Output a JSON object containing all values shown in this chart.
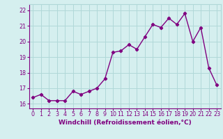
{
  "x": [
    0,
    1,
    2,
    3,
    4,
    5,
    6,
    7,
    8,
    9,
    10,
    11,
    12,
    13,
    14,
    15,
    16,
    17,
    18,
    19,
    20,
    21,
    22,
    23
  ],
  "y": [
    16.4,
    16.6,
    16.2,
    16.2,
    16.2,
    16.8,
    16.6,
    16.8,
    17.0,
    17.6,
    19.3,
    19.4,
    19.8,
    19.5,
    20.3,
    21.1,
    20.9,
    21.5,
    21.1,
    21.8,
    20.0,
    20.9,
    18.3,
    17.2
  ],
  "line_color": "#800080",
  "marker": "D",
  "marker_size": 2.2,
  "bg_color": "#d5efef",
  "grid_color": "#b0d8d8",
  "xlabel": "Windchill (Refroidissement éolien,°C)",
  "xlabel_fontsize": 6.5,
  "ylabel_ticks": [
    16,
    17,
    18,
    19,
    20,
    21,
    22
  ],
  "xtick_labels": [
    "0",
    "1",
    "2",
    "3",
    "4",
    "5",
    "6",
    "7",
    "8",
    "9",
    "10",
    "11",
    "12",
    "13",
    "14",
    "15",
    "16",
    "17",
    "18",
    "19",
    "20",
    "21",
    "22",
    "23"
  ],
  "ylim": [
    15.7,
    22.4
  ],
  "xlim": [
    -0.5,
    23.5
  ],
  "tick_color": "#800080",
  "tick_fontsize": 5.8,
  "linewidth": 1.0
}
